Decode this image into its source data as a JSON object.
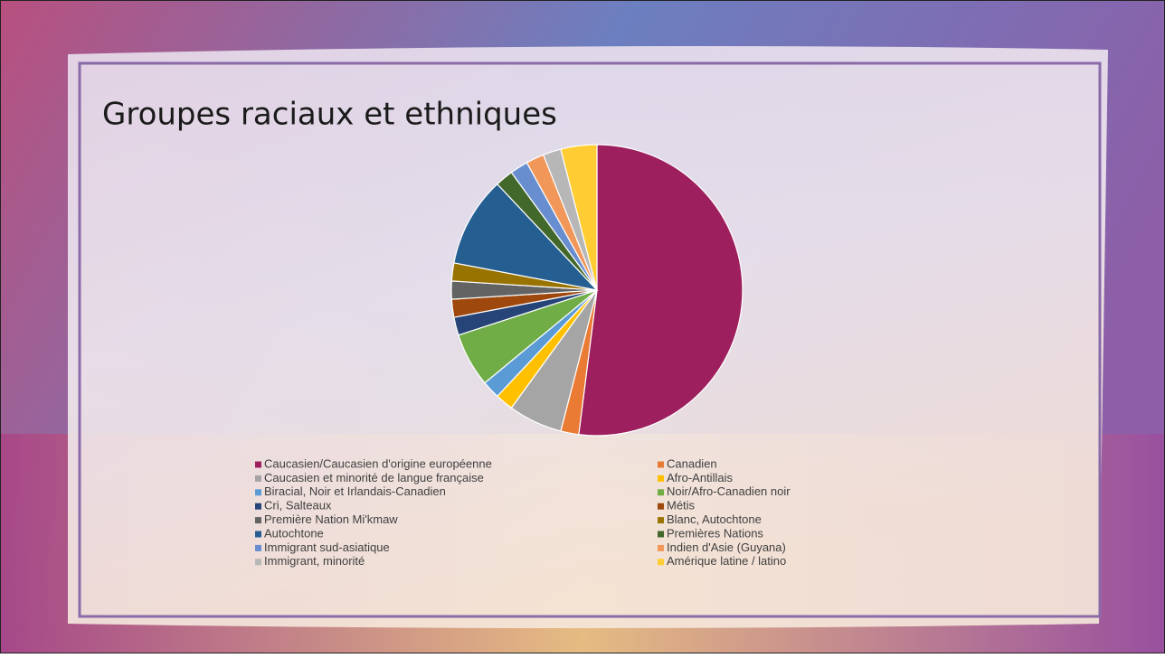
{
  "chart_data": {
    "type": "pie",
    "title": "Groupes raciaux et ethniques",
    "categories": [
      "Caucasien/Caucasien d'origine européenne",
      "Canadien",
      "Caucasien et minorité de langue française",
      "Afro-Antillais",
      "Biracial, Noir et Irlandais-Canadien",
      "Noir/Afro-Canadien noir",
      "Cri, Salteaux",
      "Métis",
      "Première Nation Mi'kmaw",
      "Blanc, Autochtone",
      "Autochtone",
      "Premières Nations",
      "Immigrant sud-asiatique",
      "Indien d'Asie (Guyana)",
      "Immigrant, minorité",
      "Amérique latine / latino"
    ],
    "values": [
      26,
      1,
      3,
      1,
      1,
      3,
      1,
      1,
      1,
      1,
      5,
      1,
      1,
      1,
      1,
      2
    ],
    "colors": [
      "#9E1F5E",
      "#E97B35",
      "#A5A5A5",
      "#FFC000",
      "#5B9BD5",
      "#70AD47",
      "#264478",
      "#9E480E",
      "#636363",
      "#997300",
      "#255E91",
      "#43682B",
      "#698ED0",
      "#F1975A",
      "#B7B7B7",
      "#FFCD33"
    ]
  }
}
